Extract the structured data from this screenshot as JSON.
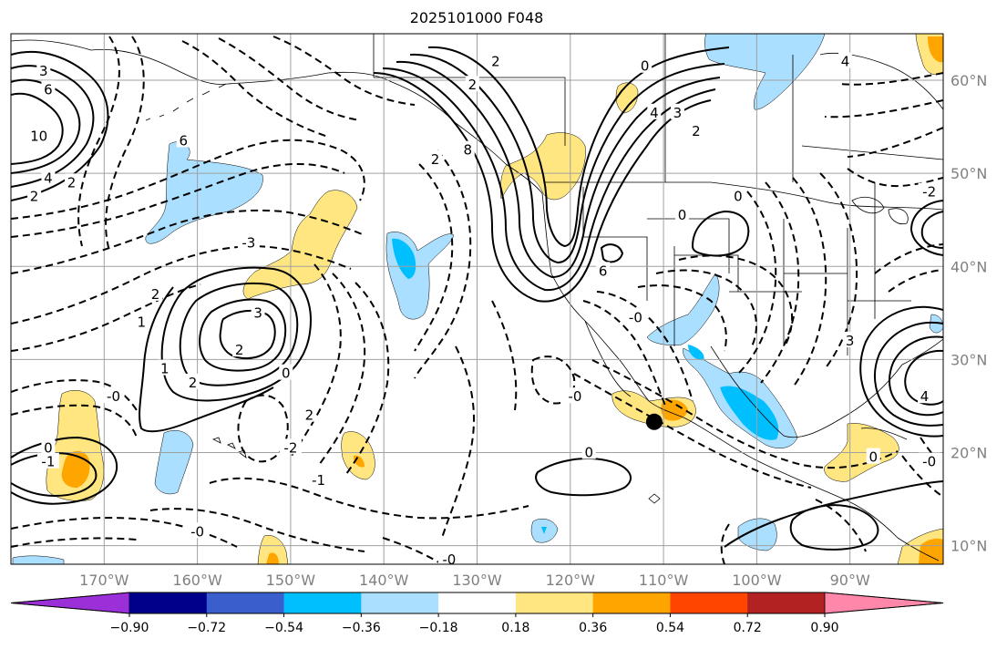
{
  "title": "2025101000 F048",
  "map": {
    "lon_range": [
      -180,
      -80
    ],
    "lat_range": [
      8,
      65
    ],
    "lon_ticks": [
      {
        "lon": -170,
        "label": "170°W"
      },
      {
        "lon": -160,
        "label": "160°W"
      },
      {
        "lon": -150,
        "label": "150°W"
      },
      {
        "lon": -140,
        "label": "140°W"
      },
      {
        "lon": -130,
        "label": "130°W"
      },
      {
        "lon": -120,
        "label": "120°W"
      },
      {
        "lon": -110,
        "label": "110°W"
      },
      {
        "lon": -100,
        "label": "100°W"
      },
      {
        "lon": -90,
        "label": "90°W"
      }
    ],
    "lat_ticks": [
      {
        "lat": 10,
        "label": "10°N"
      },
      {
        "lat": 20,
        "label": "20°N"
      },
      {
        "lat": 30,
        "label": "30°N"
      },
      {
        "lat": 40,
        "label": "40°N"
      },
      {
        "lat": 50,
        "label": "50°N"
      },
      {
        "lat": 60,
        "label": "60°N"
      }
    ],
    "gridlines": true,
    "marker": {
      "lon": -111,
      "lat": 23.3
    }
  },
  "colorbar": {
    "colors": [
      "#9b30d9",
      "#00008b",
      "#3a5fcd",
      "#00bfff",
      "#aadfff",
      "#ffffff",
      "#ffe680",
      "#ffa500",
      "#ff4500",
      "#b22222",
      "#ff88aa"
    ],
    "tick_labels": [
      "−0.90",
      "−0.72",
      "−0.54",
      "−0.36",
      "−0.18",
      "0.18",
      "0.36",
      "0.54",
      "0.72",
      "0.90"
    ]
  },
  "contour_labels": [
    {
      "text": "3",
      "lon": -176.5,
      "lat": 61
    },
    {
      "text": "6",
      "lon": -176,
      "lat": 59
    },
    {
      "text": "10",
      "lon": -177,
      "lat": 54
    },
    {
      "text": "4",
      "lon": -176,
      "lat": 49.5
    },
    {
      "text": "2",
      "lon": -177.5,
      "lat": 47.5
    },
    {
      "text": "6",
      "lon": -161.5,
      "lat": 53.5
    },
    {
      "text": "2",
      "lon": -173.5,
      "lat": 49
    },
    {
      "text": "2",
      "lon": -130.5,
      "lat": 59.5
    },
    {
      "text": "2",
      "lon": -128,
      "lat": 62
    },
    {
      "text": "0",
      "lon": -112,
      "lat": 61.5
    },
    {
      "text": "4",
      "lon": -111,
      "lat": 56.5
    },
    {
      "text": "3",
      "lon": -108.5,
      "lat": 56.5
    },
    {
      "text": "2",
      "lon": -106.5,
      "lat": 54.5
    },
    {
      "text": "4",
      "lon": -90.5,
      "lat": 62
    },
    {
      "text": "2",
      "lon": -134.5,
      "lat": 51.5
    },
    {
      "text": "8",
      "lon": -131,
      "lat": 52.5
    },
    {
      "text": "-3",
      "lon": -154.5,
      "lat": 42.5
    },
    {
      "text": "3",
      "lon": -153.5,
      "lat": 35
    },
    {
      "text": "2",
      "lon": -164.5,
      "lat": 37
    },
    {
      "text": "1",
      "lon": -166,
      "lat": 34
    },
    {
      "text": "1",
      "lon": -163.5,
      "lat": 29
    },
    {
      "text": "2",
      "lon": -155.5,
      "lat": 31
    },
    {
      "text": "2",
      "lon": -160.5,
      "lat": 27.5
    },
    {
      "text": "0",
      "lon": -150.5,
      "lat": 28.5
    },
    {
      "text": "2",
      "lon": -148,
      "lat": 24
    },
    {
      "text": "-2",
      "lon": -150,
      "lat": 20.5
    },
    {
      "text": "-1",
      "lon": -147,
      "lat": 17
    },
    {
      "text": "-0",
      "lon": -169,
      "lat": 26
    },
    {
      "text": "0",
      "lon": -176,
      "lat": 20.5
    },
    {
      "text": "-1",
      "lon": -176,
      "lat": 19
    },
    {
      "text": "-0",
      "lon": -160,
      "lat": 11.5
    },
    {
      "text": "-0",
      "lon": -133,
      "lat": 8.5
    },
    {
      "text": "6",
      "lon": -116.5,
      "lat": 39.5
    },
    {
      "text": "0",
      "lon": -108,
      "lat": 45.5
    },
    {
      "text": "0",
      "lon": -102,
      "lat": 47.5
    },
    {
      "text": "-0",
      "lon": -113,
      "lat": 34.5
    },
    {
      "text": "-0",
      "lon": -119.5,
      "lat": 26
    },
    {
      "text": "0",
      "lon": -118,
      "lat": 20
    },
    {
      "text": "3",
      "lon": -90,
      "lat": 32
    },
    {
      "text": "4",
      "lon": -82,
      "lat": 26
    },
    {
      "text": "0",
      "lon": -87.5,
      "lat": 19.5
    },
    {
      "text": "-2",
      "lon": -81.5,
      "lat": 48
    },
    {
      "text": "-0",
      "lon": -81.5,
      "lat": 19
    }
  ]
}
